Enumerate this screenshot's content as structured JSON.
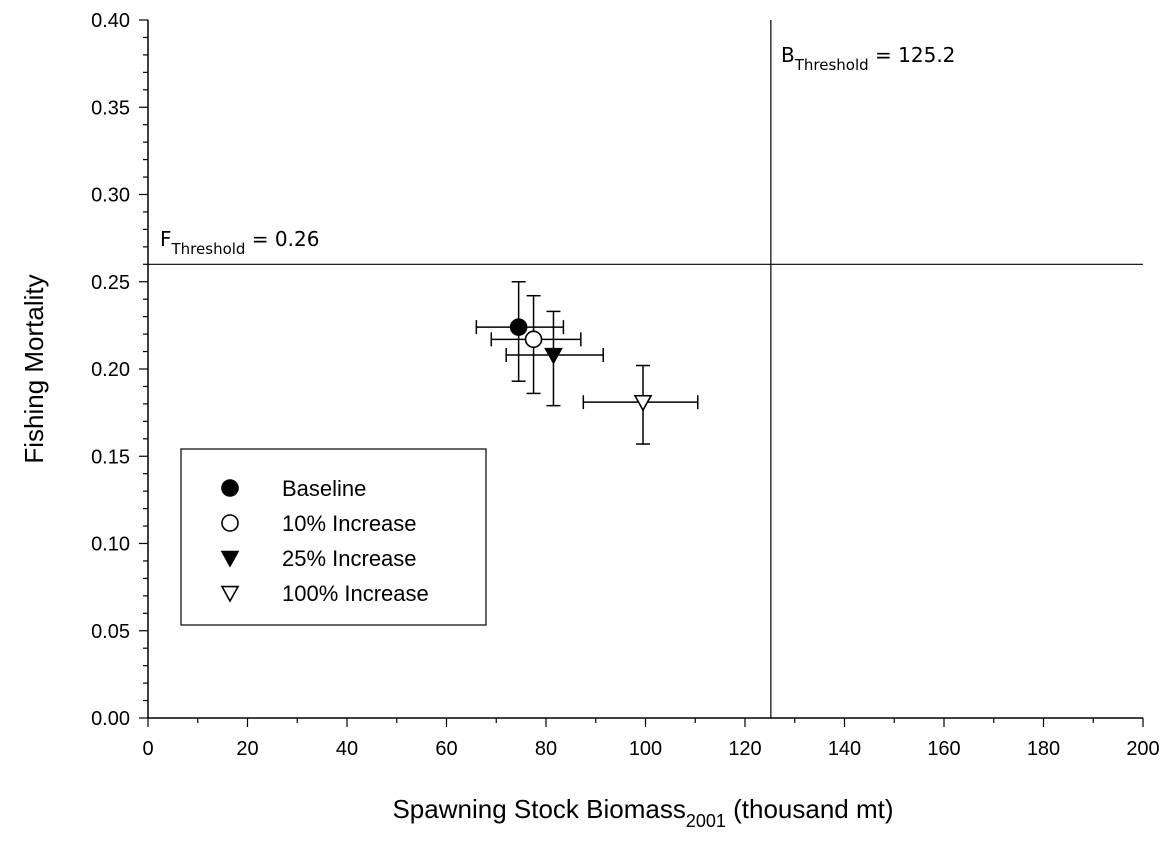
{
  "chart_data": {
    "type": "scatter",
    "xlabel": "Spawning Stock Biomass",
    "xlabel_sub": "2001",
    "xlabel_tail": " (thousand mt)",
    "ylabel": "Fishing Mortality",
    "xlim": [
      0,
      200
    ],
    "ylim": [
      0,
      0.4
    ],
    "x_ticks": [
      0,
      20,
      40,
      60,
      80,
      100,
      120,
      140,
      160,
      180,
      200
    ],
    "y_ticks": [
      0,
      0.05,
      0.1,
      0.15,
      0.2,
      0.25,
      0.3,
      0.35,
      0.4
    ],
    "x_tick_labels": [
      "0",
      "20",
      "40",
      "60",
      "80",
      "100",
      "120",
      "140",
      "160",
      "180",
      "200"
    ],
    "y_tick_labels": [
      "0.00",
      "0.05",
      "0.10",
      "0.15",
      "0.20",
      "0.25",
      "0.30",
      "0.35",
      "0.40"
    ],
    "grid": false,
    "legend_position": "lower-left",
    "thresholds": {
      "f": {
        "value": 0.26,
        "prefix": "F",
        "sub": "Threshold",
        "text": " = 0.26"
      },
      "b": {
        "value": 125.2,
        "prefix": "B",
        "sub": "Threshold",
        "text": " = 125.2"
      }
    },
    "series": [
      {
        "name": "Baseline",
        "marker": "circle-filled",
        "x": 74.5,
        "y": 0.224,
        "x_err": [
          66,
          83.5
        ],
        "y_err": [
          0.193,
          0.25
        ]
      },
      {
        "name": "10% Increase",
        "marker": "circle-open",
        "x": 77.5,
        "y": 0.217,
        "x_err": [
          69,
          87
        ],
        "y_err": [
          0.186,
          0.242
        ]
      },
      {
        "name": "25% Increase",
        "marker": "triangle-down-filled",
        "x": 81.5,
        "y": 0.208,
        "x_err": [
          72,
          91.5
        ],
        "y_err": [
          0.179,
          0.233
        ]
      },
      {
        "name": "100% Increase",
        "marker": "triangle-down-open",
        "x": 99.5,
        "y": 0.181,
        "x_err": [
          87.5,
          110.5
        ],
        "y_err": [
          0.157,
          0.202
        ]
      }
    ]
  }
}
